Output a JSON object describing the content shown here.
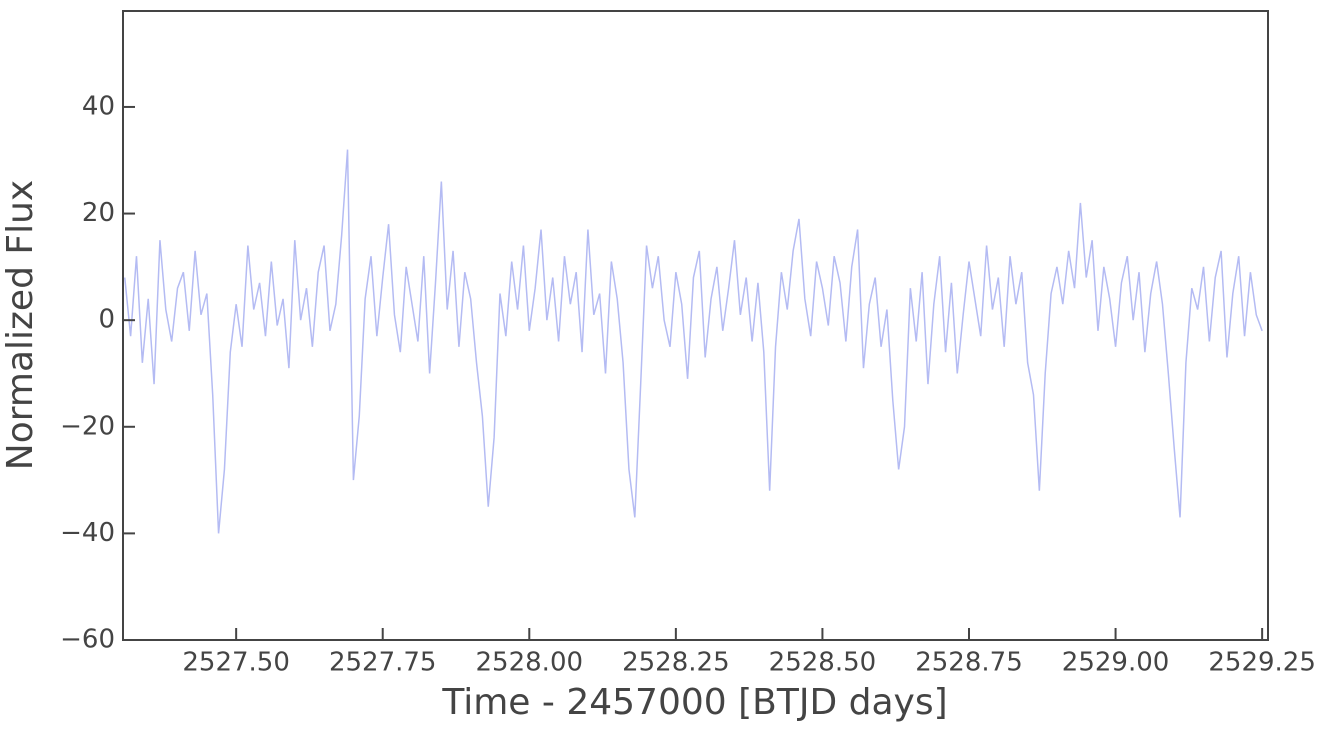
{
  "chart_data": {
    "type": "line",
    "xlabel": "Time - 2457000 [BTJD days]",
    "ylabel": "Normalized Flux",
    "color": "#b4bbf3",
    "xlim": [
      2527.307,
      2529.26
    ],
    "ylim": [
      -60,
      58
    ],
    "xticks": [
      {
        "value": 2527.5,
        "label": "2527.50"
      },
      {
        "value": 2527.75,
        "label": "2527.75"
      },
      {
        "value": 2528.0,
        "label": "2528.00"
      },
      {
        "value": 2528.25,
        "label": "2528.25"
      },
      {
        "value": 2528.5,
        "label": "2528.50"
      },
      {
        "value": 2528.75,
        "label": "2528.75"
      },
      {
        "value": 2529.0,
        "label": "2529.00"
      },
      {
        "value": 2529.25,
        "label": "2529.25"
      }
    ],
    "yticks": [
      {
        "value": -60,
        "label": "−60"
      },
      {
        "value": -40,
        "label": "−40"
      },
      {
        "value": -20,
        "label": "−20"
      },
      0,
      20,
      40
    ],
    "x": [
      2527.31,
      2527.32,
      2527.33,
      2527.34,
      2527.35,
      2527.36,
      2527.37,
      2527.38,
      2527.39,
      2527.4,
      2527.41,
      2527.42,
      2527.43,
      2527.44,
      2527.45,
      2527.46,
      2527.47,
      2527.48,
      2527.49,
      2527.5,
      2527.51,
      2527.52,
      2527.53,
      2527.54,
      2527.55,
      2527.56,
      2527.57,
      2527.58,
      2527.59,
      2527.6,
      2527.61,
      2527.62,
      2527.63,
      2527.64,
      2527.65,
      2527.66,
      2527.67,
      2527.68,
      2527.69,
      2527.7,
      2527.71,
      2527.72,
      2527.73,
      2527.74,
      2527.75,
      2527.76,
      2527.77,
      2527.78,
      2527.79,
      2527.8,
      2527.81,
      2527.82,
      2527.83,
      2527.84,
      2527.85,
      2527.86,
      2527.87,
      2527.88,
      2527.89,
      2527.9,
      2527.91,
      2527.92,
      2527.93,
      2527.94,
      2527.95,
      2527.96,
      2527.97,
      2527.98,
      2527.99,
      2528.0,
      2528.01,
      2528.02,
      2528.03,
      2528.04,
      2528.05,
      2528.06,
      2528.07,
      2528.08,
      2528.09,
      2528.1,
      2528.11,
      2528.12,
      2528.13,
      2528.14,
      2528.15,
      2528.16,
      2528.17,
      2528.18,
      2528.19,
      2528.2,
      2528.21,
      2528.22,
      2528.23,
      2528.24,
      2528.25,
      2528.26,
      2528.27,
      2528.28,
      2528.29,
      2528.3,
      2528.31,
      2528.32,
      2528.33,
      2528.34,
      2528.35,
      2528.36,
      2528.37,
      2528.38,
      2528.39,
      2528.4,
      2528.41,
      2528.42,
      2528.43,
      2528.44,
      2528.45,
      2528.46,
      2528.47,
      2528.48,
      2528.49,
      2528.5,
      2528.51,
      2528.52,
      2528.53,
      2528.54,
      2528.55,
      2528.56,
      2528.57,
      2528.58,
      2528.59,
      2528.6,
      2528.61,
      2528.62,
      2528.63,
      2528.64,
      2528.65,
      2528.66,
      2528.67,
      2528.68,
      2528.69,
      2528.7,
      2528.71,
      2528.72,
      2528.73,
      2528.74,
      2528.75,
      2528.76,
      2528.77,
      2528.78,
      2528.79,
      2528.8,
      2528.81,
      2528.82,
      2528.83,
      2528.84,
      2528.85,
      2528.86,
      2528.87,
      2528.88,
      2528.89,
      2528.9,
      2528.91,
      2528.92,
      2528.93,
      2528.94,
      2528.95,
      2528.96,
      2528.97,
      2528.98,
      2528.99,
      2529.0,
      2529.01,
      2529.02,
      2529.03,
      2529.04,
      2529.05,
      2529.06,
      2529.07,
      2529.08,
      2529.09,
      2529.1,
      2529.11,
      2529.12,
      2529.13,
      2529.14,
      2529.15,
      2529.16,
      2529.17,
      2529.18,
      2529.19,
      2529.2,
      2529.21,
      2529.22,
      2529.23,
      2529.24,
      2529.25
    ],
    "values": [
      8,
      -3,
      12,
      -8,
      4,
      -12,
      15,
      2,
      -4,
      6,
      9,
      -2,
      13,
      1,
      5,
      -14,
      -40,
      -28,
      -6,
      3,
      -5,
      14,
      2,
      7,
      -3,
      11,
      -1,
      4,
      -9,
      15,
      0,
      6,
      -5,
      9,
      14,
      -2,
      3,
      16,
      32,
      -30,
      -18,
      4,
      12,
      -3,
      8,
      18,
      1,
      -6,
      10,
      3,
      -4,
      12,
      -10,
      7,
      26,
      2,
      13,
      -5,
      9,
      4,
      -8,
      -18,
      -35,
      -22,
      5,
      -3,
      11,
      2,
      14,
      -2,
      6,
      17,
      0,
      8,
      -4,
      12,
      3,
      9,
      -6,
      17,
      1,
      5,
      -10,
      11,
      4,
      -8,
      -28,
      -37,
      -12,
      14,
      6,
      12,
      0,
      -5,
      9,
      3,
      -11,
      8,
      13,
      -7,
      4,
      10,
      -2,
      6,
      15,
      1,
      8,
      -4,
      7,
      -6,
      -32,
      -5,
      9,
      2,
      13,
      19,
      4,
      -3,
      11,
      6,
      -1,
      12,
      7,
      -4,
      10,
      17,
      -9,
      3,
      8,
      -5,
      2,
      -15,
      -28,
      -20,
      6,
      -4,
      9,
      -12,
      3,
      12,
      -6,
      7,
      -10,
      1,
      11,
      4,
      -3,
      14,
      2,
      8,
      -5,
      12,
      3,
      9,
      -8,
      -14,
      -32,
      -10,
      5,
      10,
      3,
      13,
      6,
      22,
      8,
      15,
      -2,
      10,
      4,
      -5,
      7,
      12,
      0,
      9,
      -6,
      5,
      11,
      3,
      -10,
      -24,
      -37,
      -8,
      6,
      2,
      10,
      -4,
      8,
      13,
      -7,
      5,
      12,
      -3,
      9,
      1,
      -2
    ]
  }
}
